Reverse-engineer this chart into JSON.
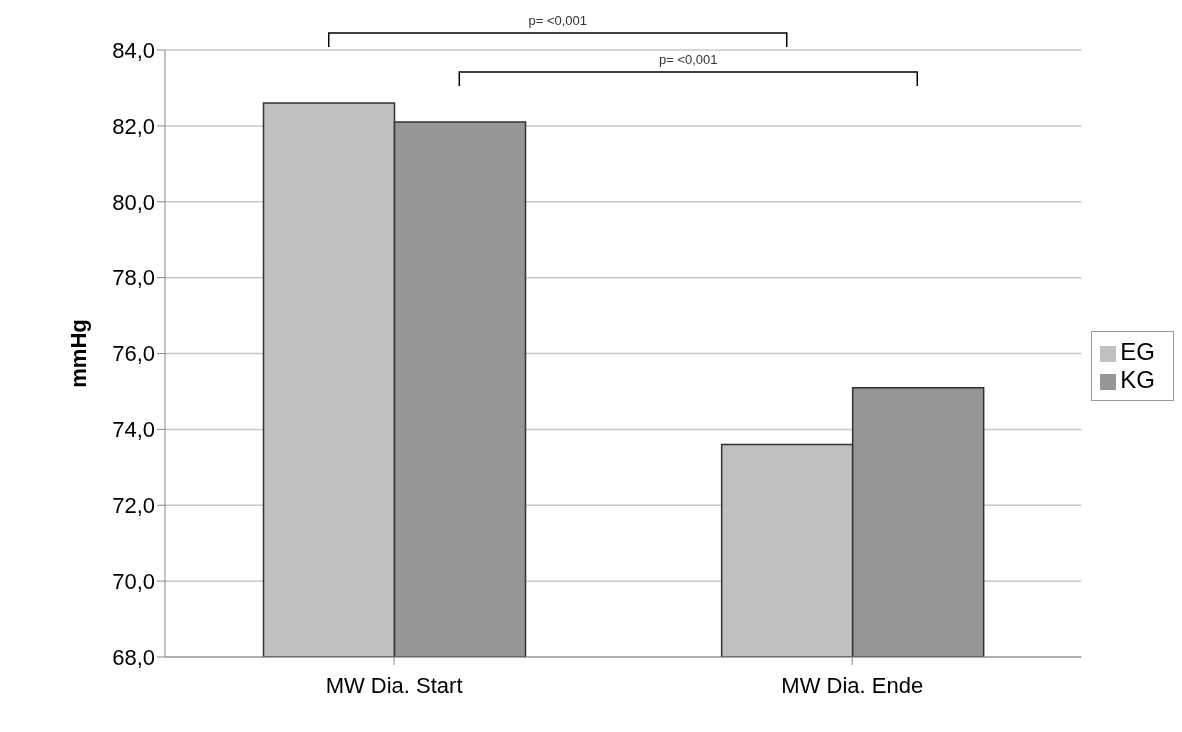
{
  "chart_data": {
    "type": "bar",
    "ylabel": "mmHg",
    "categories": [
      "MW Dia. Start",
      "MW Dia. Ende"
    ],
    "series": [
      {
        "name": "EG",
        "color": "#c0c0c0",
        "values": [
          82.6,
          73.6
        ]
      },
      {
        "name": "KG",
        "color": "#969696",
        "values": [
          82.1,
          75.1
        ]
      }
    ],
    "ylim": [
      68,
      84
    ],
    "yticks": [
      {
        "value": 68,
        "label": "68,0"
      },
      {
        "value": 70,
        "label": "70,0"
      },
      {
        "value": 72,
        "label": "72,0"
      },
      {
        "value": 74,
        "label": "74,0"
      },
      {
        "value": 76,
        "label": "76,0"
      },
      {
        "value": 78,
        "label": "78,0"
      },
      {
        "value": 80,
        "label": "80,0"
      },
      {
        "value": 82,
        "label": "82,0"
      },
      {
        "value": 84,
        "label": "84,0"
      }
    ],
    "grid": "y",
    "legend": "right",
    "annotations": [
      "p= <0,001",
      "p= <0,001"
    ]
  }
}
